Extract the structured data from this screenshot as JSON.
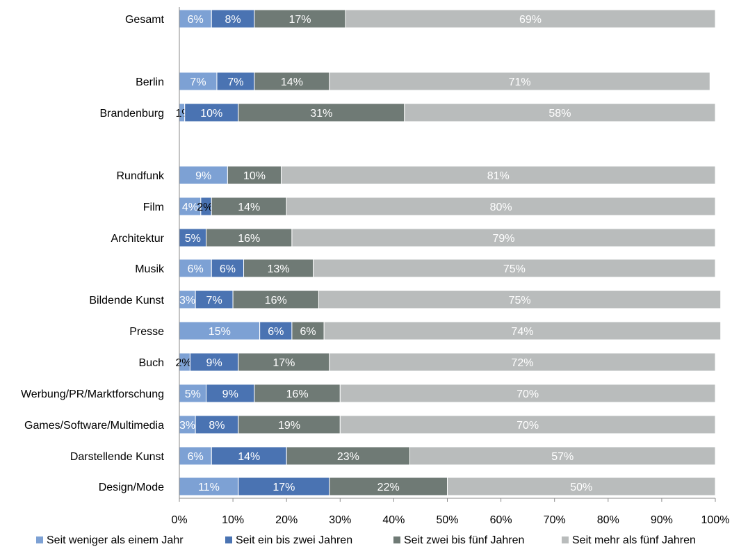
{
  "chart_data": {
    "type": "bar",
    "orientation": "horizontal",
    "stacked": "percent",
    "categories": [
      "Gesamt",
      "Berlin",
      "Brandenburg",
      "Rundfunk",
      "Film",
      "Architektur",
      "Musik",
      "Bildende Kunst",
      "Presse",
      "Buch",
      "Werbung/PR/Marktforschung",
      "Games/Software/Multimedia",
      "Darstellende Kunst",
      "Design/Mode"
    ],
    "series": [
      {
        "name": "Seit weniger als einem Jahr",
        "color": "#7da1d4",
        "values": [
          6,
          7,
          1,
          9,
          4,
          0,
          6,
          3,
          15,
          2,
          5,
          3,
          6,
          11
        ]
      },
      {
        "name": "Seit ein bis zwei Jahren",
        "color": "#4a73b2",
        "values": [
          8,
          7,
          10,
          0,
          2,
          5,
          6,
          7,
          6,
          9,
          9,
          8,
          14,
          17
        ]
      },
      {
        "name": "Seit zwei bis fünf Jahren",
        "color": "#6f7a75",
        "values": [
          17,
          14,
          31,
          10,
          14,
          16,
          13,
          16,
          6,
          17,
          16,
          19,
          23,
          22
        ]
      },
      {
        "name": "Seit mehr als fünf Jahren",
        "color": "#b9bcbc",
        "values": [
          69,
          71,
          58,
          81,
          80,
          79,
          75,
          75,
          74,
          72,
          70,
          70,
          57,
          50
        ]
      }
    ],
    "xlim": [
      0,
      100
    ],
    "x_ticks": [
      "0%",
      "10%",
      "20%",
      "30%",
      "40%",
      "50%",
      "60%",
      "70%",
      "80%",
      "90%",
      "100%"
    ],
    "xlabel": "",
    "ylabel": "",
    "grid": false,
    "legend_position": "bottom"
  }
}
